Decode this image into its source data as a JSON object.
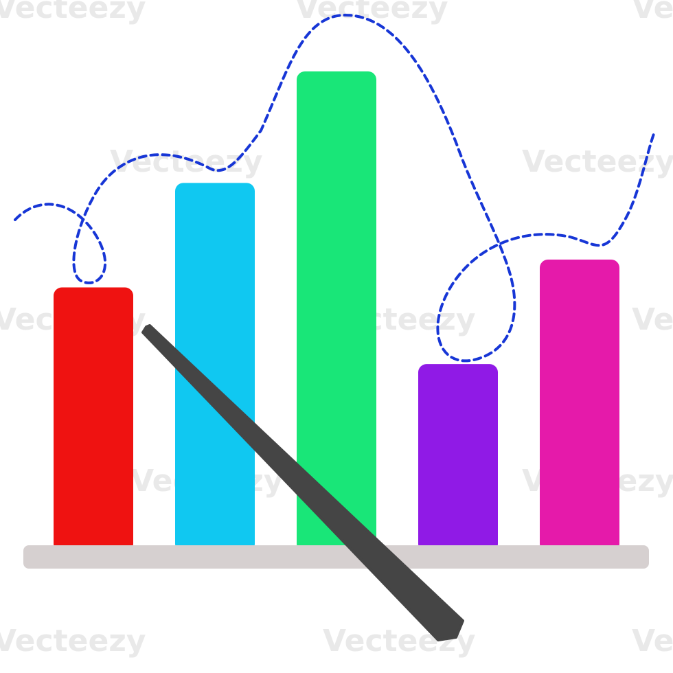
{
  "chart_data": {
    "type": "bar",
    "categories": [
      "",
      "",
      "",
      "",
      ""
    ],
    "values": [
      37,
      52,
      68,
      26,
      41
    ],
    "ylim": [
      0,
      68
    ],
    "bar_colors": [
      "#ef1211",
      "#10c8f1",
      "#19e678",
      "#901ae6",
      "#e51aaa"
    ],
    "baseline_color": "#d6d0d0",
    "trend_line": {
      "style": "dashed",
      "color": "#1736d6"
    },
    "pointer": {
      "color": "#454545"
    },
    "grid": false,
    "legend": "none",
    "watermark_text": "Vecteezy"
  }
}
